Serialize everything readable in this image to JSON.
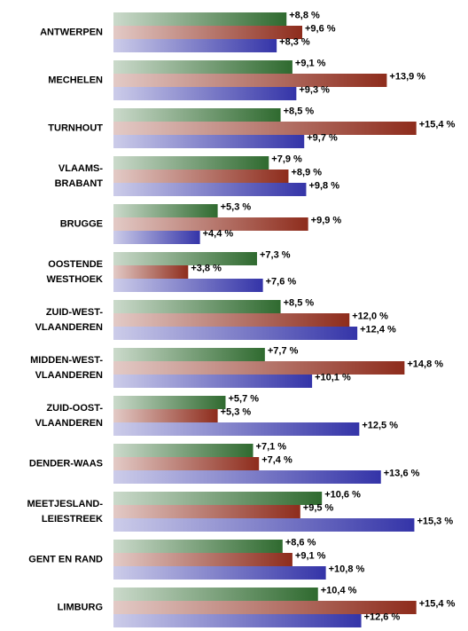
{
  "chart_data": {
    "type": "bar",
    "orientation": "horizontal",
    "categories": [
      "ANTWERPEN",
      "MECHELEN",
      "TURNHOUT",
      "VLAAMS-\nBRABANT",
      "BRUGGE",
      "OOSTENDE\nWESTHOEK",
      "ZUID-WEST-\nVLAANDEREN",
      "MIDDEN-WEST-\nVLAANDEREN",
      "ZUID-OOST-\nVLAANDEREN",
      "DENDER-WAAS",
      "MEETJESLAND-\nLEIESTREEK",
      "GENT EN RAND",
      "LIMBURG"
    ],
    "xlim": [
      0,
      16
    ],
    "series": [
      {
        "color": "#2f6a2f",
        "values": [
          8.8,
          9.1,
          8.5,
          7.9,
          5.3,
          7.3,
          8.5,
          7.7,
          5.7,
          7.1,
          10.6,
          8.6,
          10.4
        ],
        "value_labels": [
          "+8,8 %",
          "+9,1 %",
          "+8,5 %",
          "+7,9 %",
          "+5,3 %",
          "+7,3 %",
          "+8,5 %",
          "+7,7 %",
          "+5,7 %",
          "+7,1 %",
          "+10,6 %",
          "+8,6 %",
          "+10,4 %"
        ]
      },
      {
        "color": "#8e2c1c",
        "values": [
          9.6,
          13.9,
          15.4,
          8.9,
          9.9,
          3.8,
          12.0,
          14.8,
          5.3,
          7.4,
          9.5,
          9.1,
          15.4
        ],
        "value_labels": [
          "+9,6 %",
          "+13,9 %",
          "+15,4 %",
          "+8,9 %",
          "+9,9 %",
          "+3,8 %",
          "+12,0 %",
          "+14,8 %",
          "+5,3 %",
          "+7,4 %",
          "+9,5 %",
          "+9,1 %",
          "+15,4 %"
        ]
      },
      {
        "color": "#3434a8",
        "values": [
          8.3,
          9.3,
          9.7,
          9.8,
          4.4,
          7.6,
          12.4,
          10.1,
          12.5,
          13.6,
          15.3,
          10.8,
          12.6
        ],
        "value_labels": [
          "+8,3 %",
          "+9,3 %",
          "+9,7 %",
          "+9,8 %",
          "+4,4 %",
          "+7,6 %",
          "+12,4 %",
          "+10,1 %",
          "+12,5 %",
          "+13,6 %",
          "+15,3 %",
          "+10,8 %",
          "+12,6 %"
        ]
      }
    ]
  }
}
